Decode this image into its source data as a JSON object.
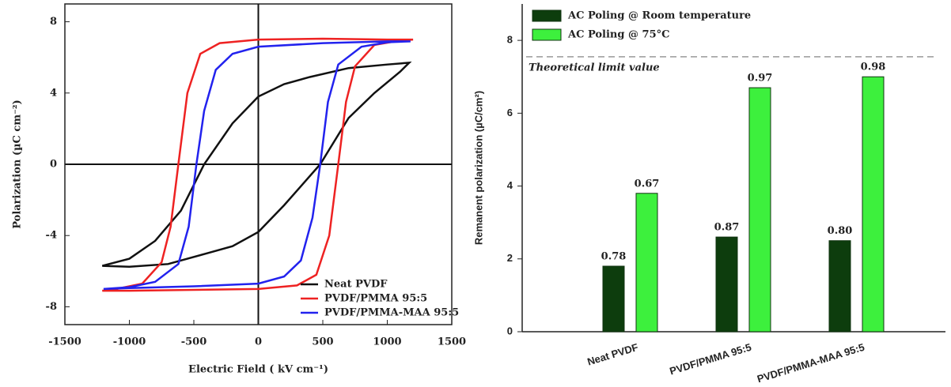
{
  "chart_data": [
    {
      "type": "line",
      "xlabel": "Electric Field ( kV cm⁻¹)",
      "ylabel": "Polarization (µC cm⁻²)",
      "xlim": [
        -1500,
        1500
      ],
      "xticks": [
        -1500,
        -1000,
        -500,
        0,
        500,
        1000,
        1500
      ],
      "ylim": [
        -9,
        9
      ],
      "yticks": [
        -8,
        -4,
        0,
        4,
        8
      ],
      "legend": "lower right",
      "series": [
        {
          "name": "Neat PVDF",
          "color": "#111111",
          "x": [
            1170,
            1000,
            700,
            400,
            200,
            0,
            -200,
            -420,
            -600,
            -800,
            -1000,
            -1210,
            -1000,
            -700,
            -400,
            -200,
            0,
            200,
            480,
            700,
            900,
            1100
          ],
          "values": [
            5.7,
            5.6,
            5.4,
            4.9,
            4.5,
            3.8,
            2.3,
            0,
            -2.6,
            -4.3,
            -5.3,
            -5.7,
            -5.75,
            -5.6,
            -5.0,
            -4.6,
            -3.8,
            -2.3,
            0,
            2.6,
            4.0,
            5.2
          ]
        },
        {
          "name": "PVDF/PMMA 95:5",
          "color": "#ee2222",
          "x": [
            1200,
            1000,
            500,
            0,
            -300,
            -450,
            -550,
            -620,
            -680,
            -750,
            -900,
            -1100,
            -1210,
            -1000,
            -500,
            0,
            300,
            450,
            550,
            620,
            680,
            750,
            900,
            1100
          ],
          "values": [
            7.0,
            7.0,
            7.05,
            7.0,
            6.8,
            6.2,
            4.0,
            0,
            -3.5,
            -5.5,
            -6.7,
            -7.0,
            -7.1,
            -7.1,
            -7.05,
            -7.0,
            -6.8,
            -6.2,
            -4.0,
            0,
            3.5,
            5.5,
            6.7,
            6.95
          ]
        },
        {
          "name": "PVDF/PMMA-MAA 95:5",
          "color": "#2222ee",
          "x": [
            1180,
            1000,
            500,
            0,
            -200,
            -330,
            -420,
            -480,
            -540,
            -620,
            -800,
            -1000,
            -1200,
            -1000,
            -500,
            0,
            200,
            330,
            420,
            480,
            540,
            620,
            800,
            1000
          ],
          "values": [
            6.9,
            6.9,
            6.8,
            6.6,
            6.2,
            5.3,
            3.0,
            0,
            -3.5,
            -5.6,
            -6.6,
            -6.9,
            -7.0,
            -6.95,
            -6.85,
            -6.7,
            -6.3,
            -5.4,
            -3.0,
            0,
            3.5,
            5.6,
            6.6,
            6.85
          ]
        }
      ]
    },
    {
      "type": "bar",
      "ylabel": "Remanent polarization (µC/cm²)",
      "categories": [
        "Neat PVDF",
        "PVDF/PMMA 95:5",
        "PVDF/PMMA-MAA 95:5"
      ],
      "ylim": [
        0,
        9
      ],
      "yticks": [
        0,
        2,
        4,
        6,
        8
      ],
      "legend": "upper left",
      "ref_line": {
        "value": 7.55,
        "label": "Theoretical  limit value"
      },
      "series": [
        {
          "name": "AC Poling @ Room temperature",
          "color": "#0d3d0d",
          "values": [
            1.8,
            2.6,
            2.5
          ],
          "annotations": [
            "0.78",
            "0.87",
            "0.80"
          ]
        },
        {
          "name": "AC Poling @ 75°C",
          "color": "#3df03d",
          "values": [
            3.8,
            6.7,
            7.0
          ],
          "annotations": [
            "0.67",
            "0.97",
            "0.98"
          ]
        }
      ]
    }
  ]
}
